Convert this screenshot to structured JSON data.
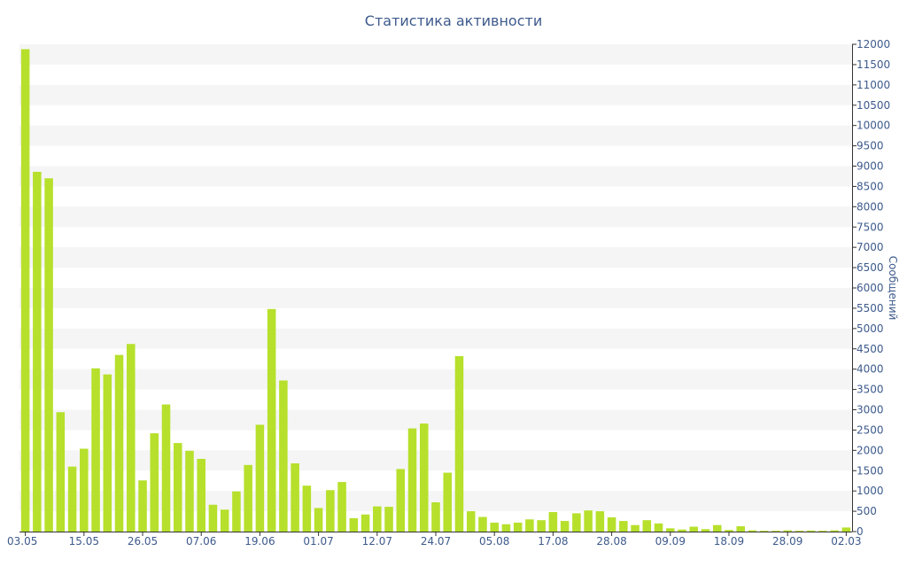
{
  "chart_data": {
    "type": "bar",
    "title": "Статистика активности",
    "ylabel": "Сообщений",
    "xlabel": "",
    "ylim": [
      0,
      12000
    ],
    "ytick_step": 500,
    "y_axis_position": "right",
    "grid": "alternating horizontal bands",
    "colors": {
      "bar": "#b6e02b",
      "band": "#f5f5f5",
      "text": "#3d5a8c",
      "axis": "#333333"
    },
    "x_tick_labels": [
      {
        "index": 0,
        "label": "03.05"
      },
      {
        "index": 5,
        "label": "15.05"
      },
      {
        "index": 10,
        "label": "26.05"
      },
      {
        "index": 15,
        "label": "07.06"
      },
      {
        "index": 20,
        "label": "19.06"
      },
      {
        "index": 25,
        "label": "01.07"
      },
      {
        "index": 30,
        "label": "12.07"
      },
      {
        "index": 35,
        "label": "24.07"
      },
      {
        "index": 40,
        "label": "05.08"
      },
      {
        "index": 45,
        "label": "17.08"
      },
      {
        "index": 50,
        "label": "28.08"
      },
      {
        "index": 55,
        "label": "09.09"
      },
      {
        "index": 60,
        "label": "18.09"
      },
      {
        "index": 65,
        "label": "28.09"
      },
      {
        "index": 70,
        "label": "02.03"
      }
    ],
    "values": [
      11880,
      8860,
      8700,
      2940,
      1600,
      2040,
      4020,
      3870,
      4350,
      4620,
      1260,
      2420,
      3130,
      2180,
      1990,
      1790,
      660,
      540,
      990,
      1640,
      2630,
      5480,
      3720,
      1680,
      1130,
      580,
      1020,
      1220,
      330,
      420,
      620,
      610,
      1540,
      2540,
      2660,
      720,
      1450,
      4320,
      500,
      360,
      220,
      180,
      220,
      300,
      280,
      480,
      260,
      450,
      520,
      500,
      350,
      260,
      160,
      280,
      200,
      80,
      50,
      120,
      60,
      160,
      40,
      130,
      30,
      20,
      20,
      30,
      20,
      25,
      20,
      30,
      100
    ]
  }
}
